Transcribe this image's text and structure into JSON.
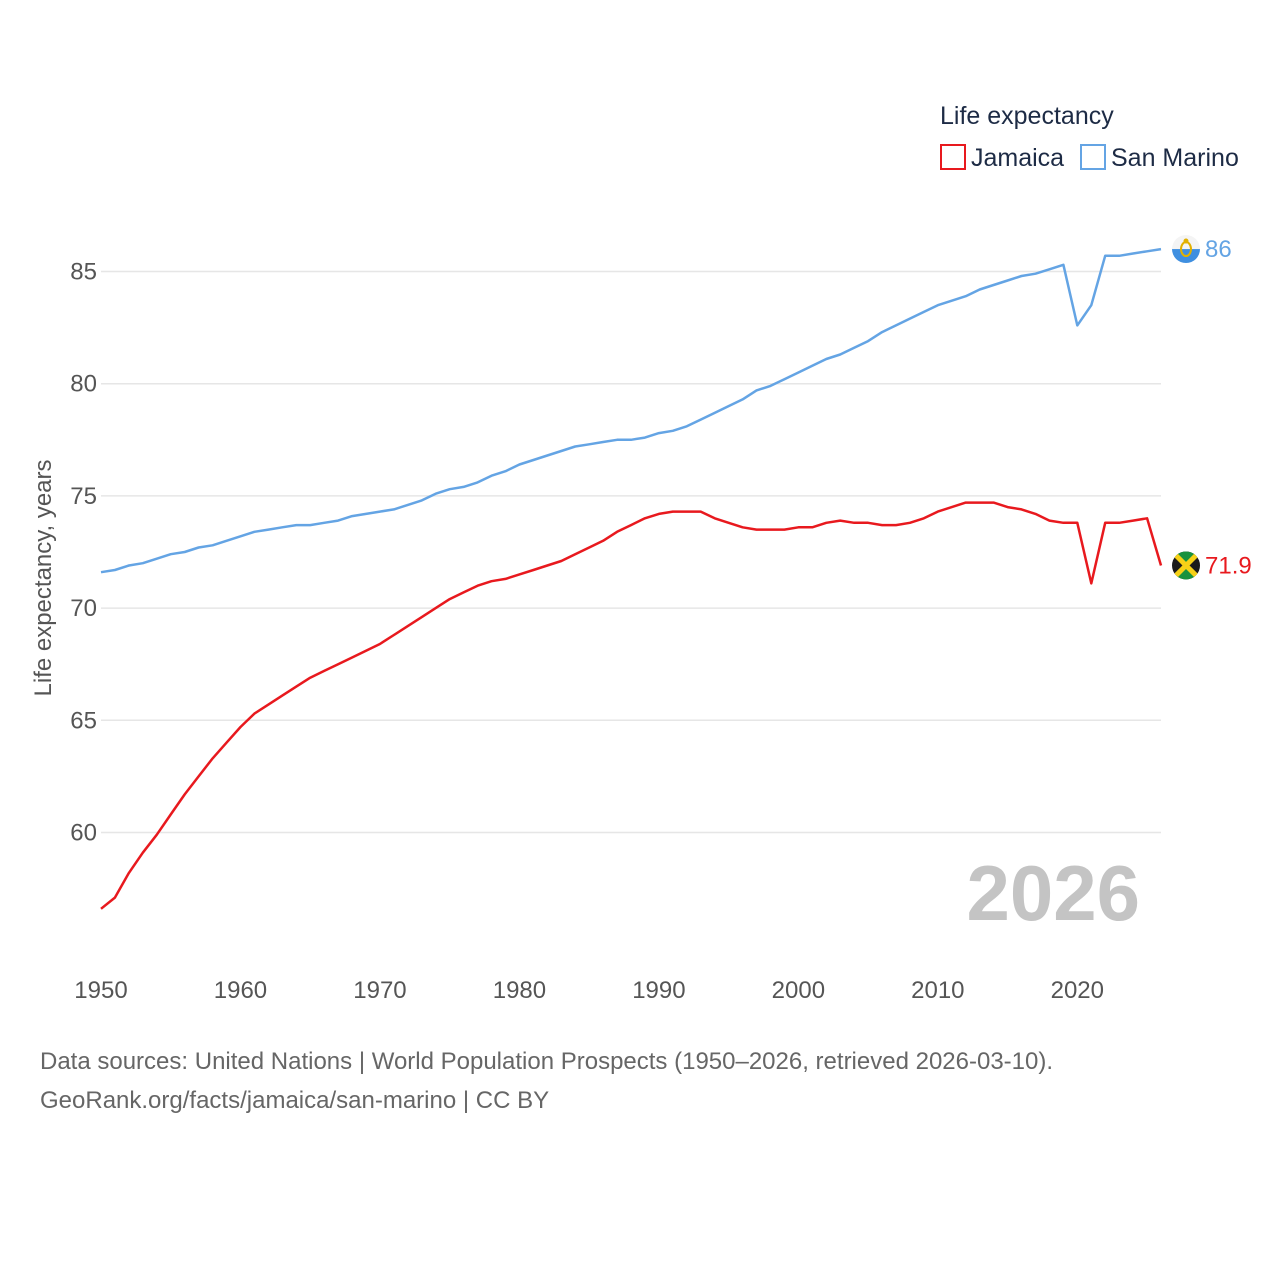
{
  "chart_data": {
    "type": "line",
    "legend_title": "Life expectancy",
    "ylabel": "Life expectancy, years",
    "xlabel": "",
    "xlim": [
      1950,
      2026
    ],
    "ylim": [
      55,
      88
    ],
    "x_ticks": [
      "1950",
      "1960",
      "1970",
      "1980",
      "1990",
      "2000",
      "2010",
      "2020"
    ],
    "y_ticks": [
      "60",
      "65",
      "70",
      "75",
      "80",
      "85"
    ],
    "year_label": "2026",
    "colors": {
      "Jamaica": "#e8191e",
      "San Marino": "#64a4e4"
    },
    "x": [
      1950,
      1951,
      1952,
      1953,
      1954,
      1955,
      1956,
      1957,
      1958,
      1959,
      1960,
      1961,
      1962,
      1963,
      1964,
      1965,
      1966,
      1967,
      1968,
      1969,
      1970,
      1971,
      1972,
      1973,
      1974,
      1975,
      1976,
      1977,
      1978,
      1979,
      1980,
      1981,
      1982,
      1983,
      1984,
      1985,
      1986,
      1987,
      1988,
      1989,
      1990,
      1991,
      1992,
      1993,
      1994,
      1995,
      1996,
      1997,
      1998,
      1999,
      2000,
      2001,
      2002,
      2003,
      2004,
      2005,
      2006,
      2007,
      2008,
      2009,
      2010,
      2011,
      2012,
      2013,
      2014,
      2015,
      2016,
      2017,
      2018,
      2019,
      2020,
      2021,
      2022,
      2023,
      2024,
      2025,
      2026
    ],
    "series": [
      {
        "name": "Jamaica",
        "end_label": "71.9",
        "values": [
          56.6,
          57.1,
          58.2,
          59.1,
          59.9,
          60.8,
          61.7,
          62.5,
          63.3,
          64.0,
          64.7,
          65.3,
          65.7,
          66.1,
          66.5,
          66.9,
          67.2,
          67.5,
          67.8,
          68.1,
          68.4,
          68.8,
          69.2,
          69.6,
          70.0,
          70.4,
          70.7,
          71.0,
          71.2,
          71.3,
          71.5,
          71.7,
          71.9,
          72.1,
          72.4,
          72.7,
          73.0,
          73.4,
          73.7,
          74.0,
          74.2,
          74.3,
          74.3,
          74.3,
          74.0,
          73.8,
          73.6,
          73.5,
          73.5,
          73.5,
          73.6,
          73.6,
          73.8,
          73.9,
          73.8,
          73.8,
          73.7,
          73.7,
          73.8,
          74.0,
          74.3,
          74.5,
          74.7,
          74.7,
          74.7,
          74.5,
          74.4,
          74.2,
          73.9,
          73.8,
          73.8,
          71.1,
          73.8,
          73.8,
          73.9,
          74.0,
          71.9
        ],
        "flag": "jamaica-flag"
      },
      {
        "name": "San Marino",
        "end_label": "86",
        "values": [
          71.6,
          71.7,
          71.9,
          72.0,
          72.2,
          72.4,
          72.5,
          72.7,
          72.8,
          73.0,
          73.2,
          73.4,
          73.5,
          73.6,
          73.7,
          73.7,
          73.8,
          73.9,
          74.1,
          74.2,
          74.3,
          74.4,
          74.6,
          74.8,
          75.1,
          75.3,
          75.4,
          75.6,
          75.9,
          76.1,
          76.4,
          76.6,
          76.8,
          77.0,
          77.2,
          77.3,
          77.4,
          77.5,
          77.5,
          77.6,
          77.8,
          77.9,
          78.1,
          78.4,
          78.7,
          79.0,
          79.3,
          79.7,
          79.9,
          80.2,
          80.5,
          80.8,
          81.1,
          81.3,
          81.6,
          81.9,
          82.3,
          82.6,
          82.9,
          83.2,
          83.5,
          83.7,
          83.9,
          84.2,
          84.4,
          84.6,
          84.8,
          84.9,
          85.1,
          85.3,
          82.6,
          83.5,
          85.7,
          85.7,
          85.8,
          85.9,
          86.0
        ],
        "flag": "san-marino-flag"
      }
    ]
  },
  "footer": {
    "line1": "Data sources: United Nations | World Population Prospects (1950–2026, retrieved 2026-03-10).",
    "line2": "GeoRank.org/facts/jamaica/san-marino | CC BY"
  }
}
